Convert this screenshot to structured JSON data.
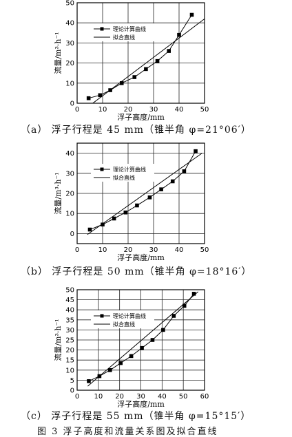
{
  "chart_data": [
    {
      "type": "line",
      "caption": "（a）  浮子行程是 45 mm（锥半角 φ=21°06′）",
      "xlabel": "浮子高度/mm",
      "ylabel": "流量/m³·h⁻¹",
      "xlim": [
        0,
        50
      ],
      "ylim": [
        0,
        50
      ],
      "xticks": [
        0,
        10,
        20,
        30,
        40,
        50
      ],
      "yticks": [
        0,
        10,
        20,
        30,
        40,
        50
      ],
      "grid": true,
      "legend_position": "top-left",
      "series": [
        {
          "name": "理论计算曲线",
          "style": "line-square-markers",
          "x": [
            4.5,
            9,
            13,
            17.5,
            22.5,
            27,
            31.5,
            36,
            40,
            45
          ],
          "values": [
            2.5,
            4,
            6.5,
            10,
            13,
            17,
            21,
            26,
            34,
            44
          ]
        },
        {
          "name": "拟合直线",
          "style": "line",
          "x": [
            3,
            50
          ],
          "values": [
            -3,
            42
          ]
        }
      ]
    },
    {
      "type": "line",
      "caption": "（b）  浮子行程是 50 mm（锥半角 φ=18°16′）",
      "xlabel": "浮子高度/mm",
      "ylabel": "流量/m³·h⁻¹",
      "xlim": [
        0,
        50
      ],
      "ylim": [
        -5,
        45
      ],
      "xticks": [
        0,
        10,
        20,
        30,
        40,
        50
      ],
      "yticks": [
        0,
        10,
        20,
        30,
        40
      ],
      "grid": true,
      "legend_position": "top-left",
      "series": [
        {
          "name": "理论计算曲线",
          "style": "line-square-markers",
          "x": [
            5,
            10,
            14.5,
            19,
            23.5,
            28.5,
            33,
            37.5,
            42,
            46.5
          ],
          "values": [
            2,
            4.5,
            7.5,
            10.5,
            14,
            18,
            22,
            26,
            31,
            41
          ]
        },
        {
          "name": "拟合直线",
          "style": "line",
          "x": [
            4,
            49
          ],
          "values": [
            -0.5,
            40
          ]
        }
      ]
    },
    {
      "type": "line",
      "caption": "（c）  浮子行程是 55 mm（锥半角 φ=15°15′）",
      "xlabel": "浮子高度/mm",
      "ylabel": "流量/m³·h⁻¹",
      "xlim": [
        0,
        60
      ],
      "ylim": [
        0,
        50
      ],
      "xticks": [
        0,
        10,
        20,
        30,
        40,
        50,
        60
      ],
      "yticks": [
        0,
        5,
        10,
        15,
        20,
        25,
        30,
        35,
        40,
        45,
        50
      ],
      "grid": true,
      "legend_position": "top-left",
      "series": [
        {
          "name": "理论计算曲线",
          "style": "line-square-markers",
          "x": [
            5.5,
            10.5,
            15.5,
            20.5,
            25.5,
            30.5,
            35.5,
            40.5,
            45.5,
            50.5,
            55
          ],
          "values": [
            4.5,
            7,
            10,
            13.5,
            17,
            21,
            25,
            30,
            37,
            42,
            48
          ]
        },
        {
          "name": "拟合直线",
          "style": "line",
          "x": [
            5,
            57
          ],
          "values": [
            2,
            49
          ]
        }
      ]
    }
  ],
  "figure_title": "图 3   浮子高度和流量关系图及拟合直线"
}
